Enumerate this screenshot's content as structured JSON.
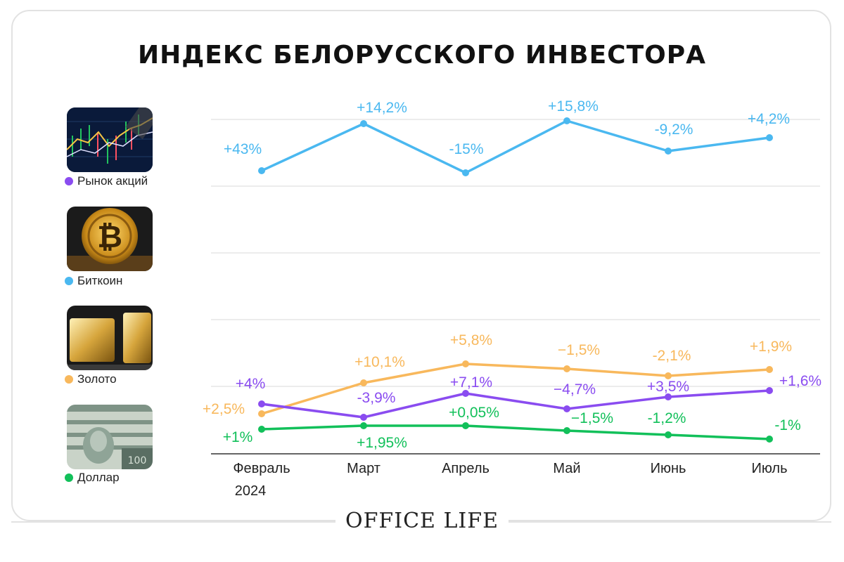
{
  "title": "ИНДЕКС БЕЛОРУССКОГО ИНВЕСТОРА",
  "brand": "OFFICE LIFE",
  "legend": [
    {
      "label": "Рынок акций",
      "color": "#8a4cf0",
      "icon": "stock-chart-image"
    },
    {
      "label": "Биткоин",
      "color": "#4ab8f0",
      "icon": "bitcoin-image"
    },
    {
      "label": "Золото",
      "color": "#f8b85c",
      "icon": "gold-bars-image"
    },
    {
      "label": "Доллар",
      "color": "#12c05a",
      "icon": "dollar-bills-image"
    }
  ],
  "chart_data": {
    "type": "line",
    "title": "ИНДЕКС БЕЛОРУССКОГО ИНВЕСТОРА",
    "categories": [
      "Февраль",
      "Март",
      "Апрель",
      "Май",
      "Июнь",
      "Июль"
    ],
    "first_category_sub": "2024",
    "grid": true,
    "series": [
      {
        "name": "Биткоин",
        "color": "#4ab8f0",
        "values": [
          43,
          14.2,
          -15,
          15.8,
          -9.2,
          4.2
        ],
        "labels": [
          "+43%",
          "+14,2%",
          "-15%",
          "+15,8%",
          "-9,2%",
          "+4,2%"
        ]
      },
      {
        "name": "Золото",
        "color": "#f8b85c",
        "values": [
          2.5,
          10.1,
          5.8,
          -1.5,
          -2.1,
          1.9
        ],
        "labels": [
          "+2,5%",
          "+10,1%",
          "+5,8%",
          "−1,5%",
          "-2,1%",
          "+1,9%"
        ]
      },
      {
        "name": "Рынок акций",
        "color": "#8a4cf0",
        "values": [
          4,
          -3.9,
          7.1,
          -4.7,
          3.5,
          1.6
        ],
        "labels": [
          "+4%",
          "-3,9%",
          "+7,1%",
          "−4,7%",
          "+3,5%",
          "+1,6%"
        ]
      },
      {
        "name": "Доллар",
        "color": "#12c05a",
        "values": [
          1,
          1.95,
          0.05,
          -1.5,
          -1.2,
          -1
        ],
        "labels": [
          "+1%",
          "+1,95%",
          "+0,05%",
          "−1,5%",
          "-1,2%",
          "-1%"
        ]
      }
    ]
  }
}
